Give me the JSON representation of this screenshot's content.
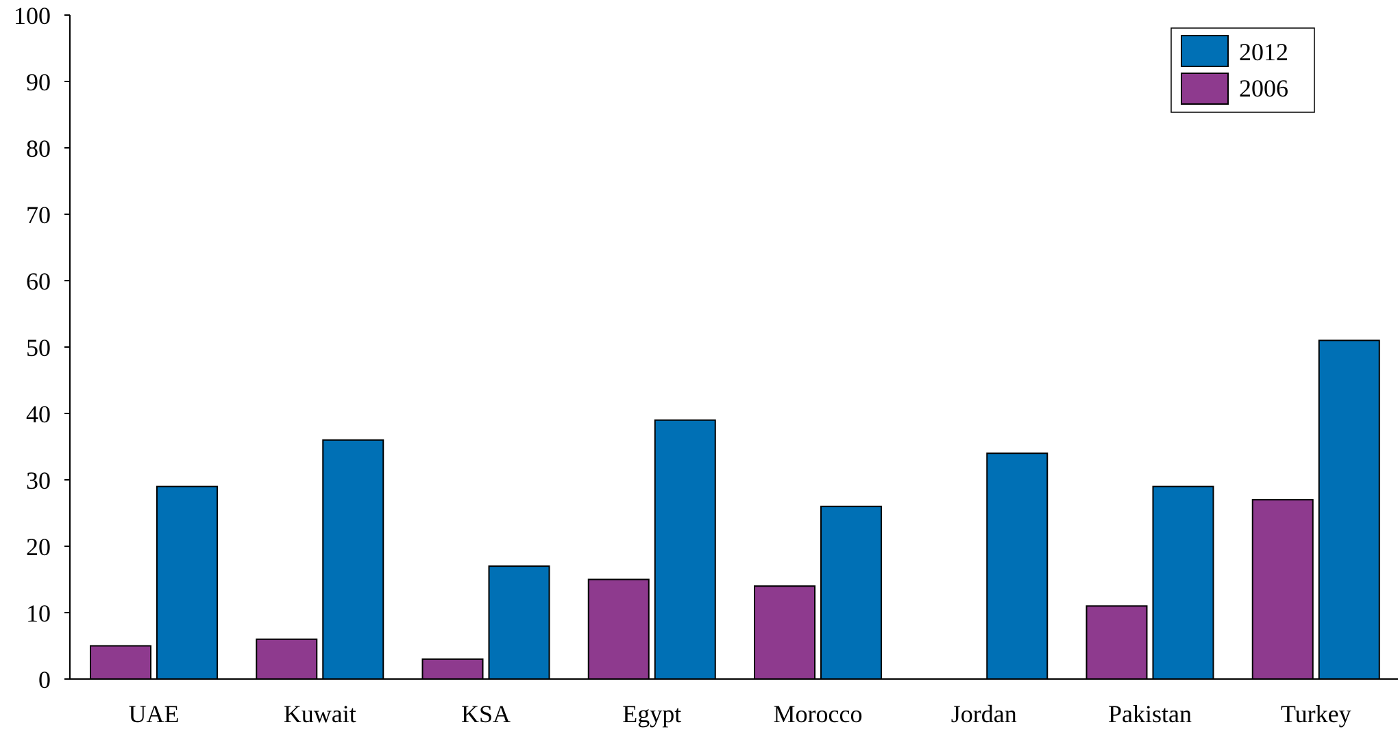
{
  "colors": {
    "series_2012": "#0070B5",
    "series_2006": "#8E3A8E",
    "axis": "#000000"
  },
  "chart_data": {
    "type": "bar",
    "categories": [
      "UAE",
      "Kuwait",
      "KSA",
      "Egypt",
      "Morocco",
      "Jordan",
      "Pakistan",
      "Turkey"
    ],
    "series": [
      {
        "name": "2006",
        "values": [
          5,
          6,
          3,
          15,
          14,
          0,
          11,
          27
        ]
      },
      {
        "name": "2012",
        "values": [
          29,
          36,
          17,
          39,
          26,
          34,
          29,
          51
        ]
      }
    ],
    "ylim": [
      0,
      100
    ],
    "yticks": [
      "0",
      "10",
      "20",
      "30",
      "40",
      "50",
      "60",
      "70",
      "80",
      "90",
      "100"
    ],
    "title": "",
    "xlabel": "",
    "ylabel": "",
    "grid": false,
    "legend": {
      "position": "top-right",
      "entries": [
        "2012",
        "2006"
      ]
    }
  }
}
